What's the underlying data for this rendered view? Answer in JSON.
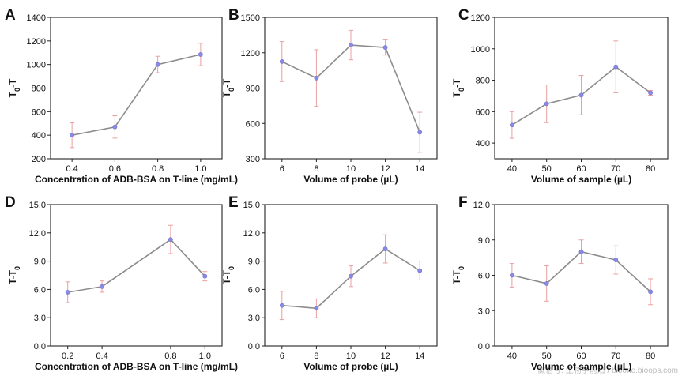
{
  "watermark": "微信号: 生物学前沿 / bioone.bioops.com",
  "chart_data": [
    {
      "type": "line",
      "panel": "A",
      "x": [
        0.4,
        0.6,
        0.8,
        1.0
      ],
      "x_ticks": [
        "0.4",
        "0.6",
        "0.8",
        "1.0"
      ],
      "xlim": [
        0.3,
        1.1
      ],
      "series": [
        {
          "values": [
            400,
            470,
            1000,
            1085
          ],
          "errors": [
            105,
            95,
            70,
            95
          ]
        }
      ],
      "xlabel": "Concentration of ADB-BSA on T-line (mg/mL)",
      "ylabel": [
        "T",
        "0",
        "-T"
      ],
      "ylim": [
        200,
        1400
      ],
      "y_ticks": [
        "200",
        "400",
        "600",
        "800",
        "1000",
        "1200",
        "1400"
      ],
      "line_color": "#8c8c8c",
      "marker_color": "#8a8ae6",
      "error_color": "#e8a0a0"
    },
    {
      "type": "line",
      "panel": "B",
      "x": [
        6,
        8,
        10,
        12,
        14
      ],
      "x_ticks": [
        "6",
        "8",
        "10",
        "12",
        "14"
      ],
      "xlim": [
        5,
        15
      ],
      "series": [
        {
          "values": [
            1125,
            985,
            1265,
            1245,
            525
          ],
          "errors": [
            170,
            240,
            125,
            65,
            170
          ]
        }
      ],
      "xlabel": "Volume of probe (µL)",
      "ylabel": [
        "T",
        "0",
        "-T"
      ],
      "ylim": [
        300,
        1500
      ],
      "y_ticks": [
        "300",
        "600",
        "900",
        "1200",
        "1500"
      ],
      "line_color": "#8c8c8c",
      "marker_color": "#8a8ae6",
      "error_color": "#e8a0a0"
    },
    {
      "type": "line",
      "panel": "C",
      "x": [
        40,
        50,
        60,
        70,
        80
      ],
      "x_ticks": [
        "40",
        "50",
        "60",
        "70",
        "80"
      ],
      "xlim": [
        35,
        85
      ],
      "series": [
        {
          "values": [
            515,
            650,
            705,
            885,
            720
          ],
          "errors": [
            85,
            120,
            125,
            165,
            15
          ]
        }
      ],
      "xlabel": "Volume of sample (µL)",
      "ylabel": [
        "T",
        "0",
        "-T"
      ],
      "ylim": [
        300,
        1200
      ],
      "y_ticks": [
        "400",
        "600",
        "800",
        "1000",
        "1200"
      ],
      "line_color": "#8c8c8c",
      "marker_color": "#8a8ae6",
      "error_color": "#e8a0a0"
    },
    {
      "type": "line",
      "panel": "D",
      "x": [
        0.2,
        0.4,
        0.8,
        1.0
      ],
      "x_ticks": [
        "0.2",
        "0.4",
        "0.8",
        "1.0"
      ],
      "x_tick_positions": [
        0.2,
        0.4,
        0.8,
        1.0
      ],
      "xlim": [
        0.1,
        1.1
      ],
      "series": [
        {
          "values": [
            5.7,
            6.3,
            11.3,
            7.4
          ],
          "errors": [
            1.1,
            0.6,
            1.5,
            0.5
          ]
        }
      ],
      "xlabel": "Concentration of ADB-BSA on T-line (mg/mL)",
      "ylabel": [
        "T-T",
        "0",
        ""
      ],
      "ylim": [
        0,
        15
      ],
      "y_ticks": [
        "0.0",
        "3.0",
        "6.0",
        "9.0",
        "12.0",
        "15.0"
      ],
      "line_color": "#8c8c8c",
      "marker_color": "#8a8ae6",
      "error_color": "#e8a0a0"
    },
    {
      "type": "line",
      "panel": "E",
      "x": [
        6,
        8,
        10,
        12,
        14
      ],
      "x_ticks": [
        "6",
        "8",
        "10",
        "12",
        "14"
      ],
      "xlim": [
        5,
        15
      ],
      "series": [
        {
          "values": [
            4.3,
            4.0,
            7.4,
            10.3,
            8.0
          ],
          "errors": [
            1.5,
            1.0,
            1.1,
            1.5,
            1.0
          ]
        }
      ],
      "xlabel": "Volume of probe (µL)",
      "ylabel": [
        "T-T",
        "0",
        ""
      ],
      "ylim": [
        0,
        15
      ],
      "y_ticks": [
        "0.0",
        "3.0",
        "6.0",
        "9.0",
        "12.0",
        "15.0"
      ],
      "line_color": "#8c8c8c",
      "marker_color": "#8a8ae6",
      "error_color": "#e8a0a0"
    },
    {
      "type": "line",
      "panel": "F",
      "x": [
        40,
        50,
        60,
        70,
        80
      ],
      "x_ticks": [
        "40",
        "50",
        "60",
        "70",
        "80"
      ],
      "xlim": [
        35,
        85
      ],
      "series": [
        {
          "values": [
            6.0,
            5.3,
            8.0,
            7.3,
            4.6
          ],
          "errors": [
            1.0,
            1.5,
            1.0,
            1.2,
            1.1
          ]
        }
      ],
      "xlabel": "Volume of sample (µL)",
      "ylabel": [
        "T-T",
        "0",
        ""
      ],
      "ylim": [
        0,
        12
      ],
      "y_ticks": [
        "0.0",
        "3.0",
        "6.0",
        "9.0",
        "12.0"
      ],
      "line_color": "#8c8c8c",
      "marker_color": "#8a8ae6",
      "error_color": "#e8a0a0"
    }
  ]
}
